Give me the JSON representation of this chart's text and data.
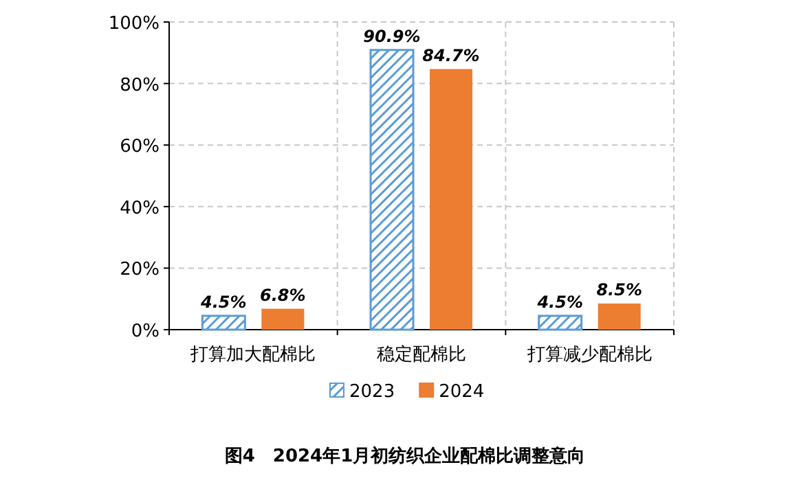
{
  "chart_data": {
    "type": "bar",
    "title": "图4　2024年1月初纺织企业配棉比调整意向",
    "categories": [
      "打算加大配棉比",
      "稳定配棉比",
      "打算减少配棉比"
    ],
    "series": [
      {
        "name": "2023",
        "color": "#5b9bd5",
        "values": [
          4.5,
          90.9,
          4.5
        ],
        "value_labels": [
          "4.5%",
          "90.9%",
          "4.5%"
        ]
      },
      {
        "name": "2024",
        "color": "#ed7d31",
        "values": [
          6.8,
          84.7,
          8.5
        ],
        "value_labels": [
          "6.8%",
          "84.7%",
          "8.5%"
        ]
      }
    ],
    "ylim": [
      0,
      100
    ],
    "yticks": [
      {
        "value": 0,
        "label": "0%"
      },
      {
        "value": 20,
        "label": "20%"
      },
      {
        "value": 40,
        "label": "40%"
      },
      {
        "value": 60,
        "label": "60%"
      },
      {
        "value": 80,
        "label": "80%"
      },
      {
        "value": 100,
        "label": "100%"
      }
    ],
    "grid": true,
    "legend": "bottom"
  }
}
